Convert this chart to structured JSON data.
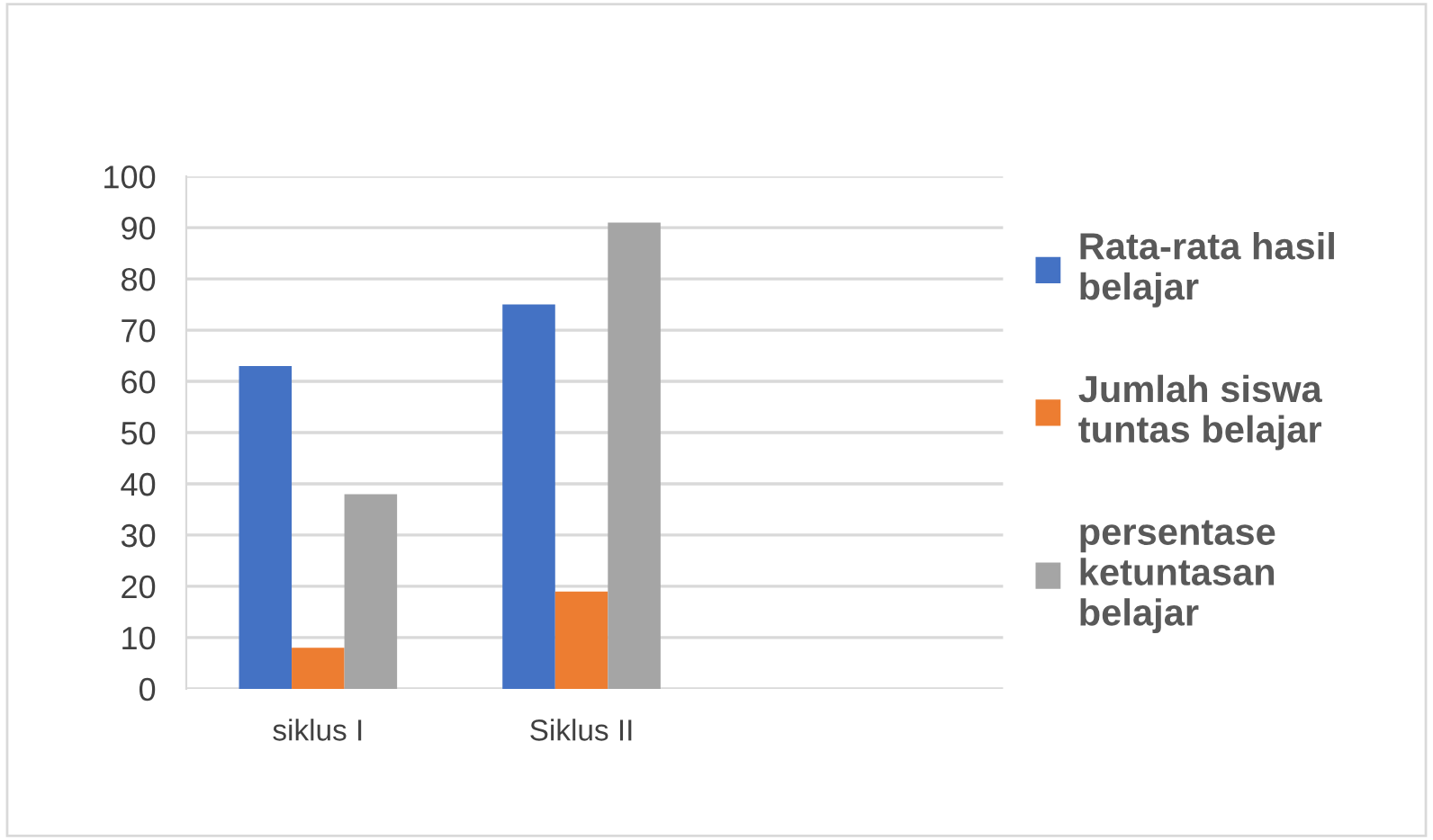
{
  "chart_data": {
    "type": "bar",
    "categories": [
      "siklus I",
      "Siklus II"
    ],
    "series": [
      {
        "name": "Rata-rata hasil\nbelajar",
        "color": "#4472c4",
        "values": [
          63,
          75
        ]
      },
      {
        "name": "Jumlah siswa\ntuntas belajar",
        "color": "#ed7d31",
        "values": [
          8,
          19
        ]
      },
      {
        "name": "persentase\nketuntasan\nbelajar",
        "color": "#a5a5a5",
        "values": [
          38,
          91
        ]
      }
    ],
    "ylim": [
      0,
      100
    ],
    "yticks": [
      0,
      10,
      20,
      30,
      40,
      50,
      60,
      70,
      80,
      90,
      100
    ],
    "grid": "y",
    "legend": "right"
  }
}
